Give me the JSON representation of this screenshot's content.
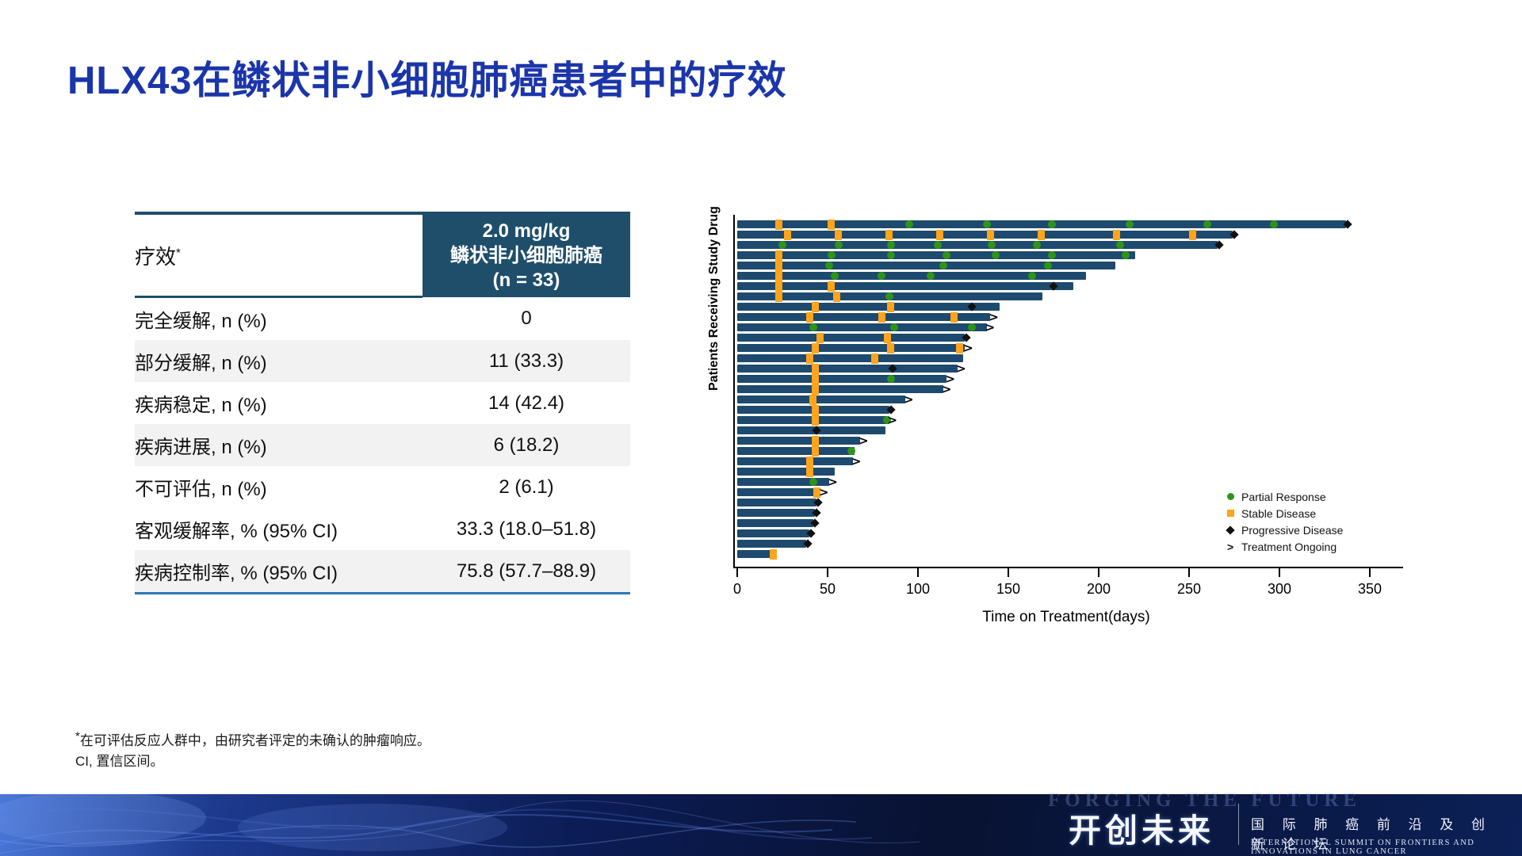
{
  "title": "HLX43在鳞状非小细胞肺癌患者中的疗效",
  "table": {
    "header_left": "疗效",
    "header_left_sup": "*",
    "header_right_lines": [
      "2.0 mg/kg",
      "鳞状非小细胞肺癌",
      "(n = 33)"
    ],
    "rows": [
      {
        "label": "完全缓解, n (%)",
        "value": "0",
        "indent": true,
        "shade": false
      },
      {
        "label": "部分缓解, n (%)",
        "value": "11 (33.3)",
        "indent": true,
        "shade": true
      },
      {
        "label": "疾病稳定, n (%)",
        "value": "14 (42.4)",
        "indent": true,
        "shade": false
      },
      {
        "label": "疾病进展, n (%)",
        "value": "6 (18.2)",
        "indent": true,
        "shade": true
      },
      {
        "label": "不可评估, n (%)",
        "value": "2 (6.1)",
        "indent": true,
        "shade": false
      },
      {
        "label": "客观缓解率, % (95% CI)",
        "value": "33.3 (18.0–51.8)",
        "indent": false,
        "shade": false
      },
      {
        "label": "疾病控制率, % (95% CI)",
        "value": "75.8 (57.7–88.9)",
        "indent": false,
        "shade": true
      }
    ]
  },
  "chart_data": {
    "type": "bar",
    "orientation": "horizontal-swimmer",
    "title": "",
    "xlabel": "Time on Treatment(days)",
    "ylabel": "Patients Receiving Study Drug",
    "xlim": [
      0,
      350
    ],
    "xticks": [
      0,
      50,
      100,
      150,
      200,
      250,
      300,
      350
    ],
    "grid": false,
    "legend_position": "right-bottom",
    "colors": {
      "bar": "#1d4a6e",
      "pr": "#2e9418",
      "sd": "#ffa41c",
      "pd": "#111111",
      "arrow": "#111111"
    },
    "legend": [
      {
        "label": "Partial Response",
        "marker": "circle"
      },
      {
        "label": "Stable Disease",
        "marker": "square"
      },
      {
        "label": "Progressive Disease",
        "marker": "diamond"
      },
      {
        "label": "Treatment Ongoing",
        "marker": "arrow"
      }
    ],
    "bars": [
      {
        "len": 337,
        "end": "pd",
        "markers": [
          [
            23,
            "SD"
          ],
          [
            52,
            "SD"
          ],
          [
            95,
            "PR"
          ],
          [
            138,
            "PR"
          ],
          [
            174,
            "PR"
          ],
          [
            217,
            "PR"
          ],
          [
            260,
            "PR"
          ],
          [
            297,
            "PR"
          ]
        ]
      },
      {
        "len": 274,
        "end": "pd",
        "markers": [
          [
            28,
            "SD"
          ],
          [
            56,
            "SD"
          ],
          [
            84,
            "SD"
          ],
          [
            112,
            "SD"
          ],
          [
            140,
            "SD"
          ],
          [
            168,
            "SD"
          ],
          [
            210,
            "SD"
          ],
          [
            252,
            "SD"
          ]
        ]
      },
      {
        "len": 266,
        "end": "pd",
        "markers": [
          [
            25,
            "PR"
          ],
          [
            56,
            "PR"
          ],
          [
            85,
            "PR"
          ],
          [
            111,
            "PR"
          ],
          [
            141,
            "PR"
          ],
          [
            166,
            "PR"
          ],
          [
            212,
            "PR"
          ]
        ]
      },
      {
        "len": 220,
        "end": "none",
        "markers": [
          [
            23,
            "SD"
          ],
          [
            52,
            "PR"
          ],
          [
            85,
            "PR"
          ],
          [
            116,
            "PR"
          ],
          [
            143,
            "PR"
          ],
          [
            174,
            "PR"
          ],
          [
            215,
            "PR"
          ]
        ]
      },
      {
        "len": 209,
        "end": "none",
        "markers": [
          [
            23,
            "SD"
          ],
          [
            51,
            "PR"
          ],
          [
            114,
            "PR"
          ],
          [
            172,
            "PR"
          ]
        ]
      },
      {
        "len": 193,
        "end": "none",
        "markers": [
          [
            23,
            "SD"
          ],
          [
            54,
            "PR"
          ],
          [
            80,
            "PR"
          ],
          [
            107,
            "PR"
          ],
          [
            163,
            "PR"
          ]
        ]
      },
      {
        "len": 186,
        "end": "none",
        "markers": [
          [
            23,
            "SD"
          ],
          [
            52,
            "SD"
          ],
          [
            175,
            "PD"
          ]
        ]
      },
      {
        "len": 169,
        "end": "none",
        "markers": [
          [
            23,
            "SD"
          ],
          [
            55,
            "SD"
          ],
          [
            84,
            "PR"
          ]
        ]
      },
      {
        "len": 145,
        "end": "none",
        "markers": [
          [
            43,
            "SD"
          ],
          [
            85,
            "SD"
          ],
          [
            130,
            "PD"
          ]
        ]
      },
      {
        "len": 140,
        "end": "arrow",
        "markers": [
          [
            40,
            "SD"
          ],
          [
            80,
            "SD"
          ],
          [
            120,
            "SD"
          ]
        ]
      },
      {
        "len": 138,
        "end": "arrow",
        "markers": [
          [
            42,
            "PR"
          ],
          [
            87,
            "PR"
          ],
          [
            130,
            "PR"
          ]
        ]
      },
      {
        "len": 126,
        "end": "pd",
        "markers": [
          [
            46,
            "SD"
          ],
          [
            83,
            "SD"
          ]
        ]
      },
      {
        "len": 126,
        "end": "arrow",
        "markers": [
          [
            43,
            "SD"
          ],
          [
            85,
            "SD"
          ],
          [
            123,
            "SD"
          ]
        ]
      },
      {
        "len": 125,
        "end": "none",
        "markers": [
          [
            40,
            "SD"
          ],
          [
            76,
            "SD"
          ]
        ]
      },
      {
        "len": 122,
        "end": "arrow",
        "markers": [
          [
            43,
            "SD"
          ],
          [
            86,
            "PD"
          ]
        ]
      },
      {
        "len": 116,
        "end": "arrow",
        "markers": [
          [
            43,
            "SD"
          ],
          [
            85,
            "PR"
          ]
        ]
      },
      {
        "len": 114,
        "end": "arrow",
        "markers": [
          [
            43,
            "SD"
          ]
        ]
      },
      {
        "len": 93,
        "end": "arrow",
        "markers": [
          [
            42,
            "SD"
          ]
        ]
      },
      {
        "len": 84,
        "end": "pd",
        "markers": [
          [
            43,
            "SD"
          ]
        ]
      },
      {
        "len": 84,
        "end": "arrow",
        "markers": [
          [
            43,
            "SD"
          ],
          [
            83,
            "PR"
          ]
        ]
      },
      {
        "len": 82,
        "end": "none",
        "markers": [
          [
            44,
            "PD"
          ]
        ]
      },
      {
        "len": 68,
        "end": "arrow",
        "markers": [
          [
            43,
            "SD"
          ]
        ]
      },
      {
        "len": 65,
        "end": "none",
        "markers": [
          [
            43,
            "SD"
          ],
          [
            63,
            "PR"
          ]
        ]
      },
      {
        "len": 64,
        "end": "arrow",
        "markers": [
          [
            40,
            "SD"
          ]
        ]
      },
      {
        "len": 54,
        "end": "none",
        "markers": [
          [
            40,
            "SD"
          ]
        ]
      },
      {
        "len": 51,
        "end": "arrow",
        "markers": [
          [
            42,
            "PR"
          ]
        ]
      },
      {
        "len": 46,
        "end": "arrow",
        "markers": [
          [
            44,
            "SD"
          ]
        ]
      },
      {
        "len": 44,
        "end": "pd",
        "markers": []
      },
      {
        "len": 43,
        "end": "pd",
        "markers": []
      },
      {
        "len": 42,
        "end": "pd",
        "markers": []
      },
      {
        "len": 40,
        "end": "pd",
        "markers": []
      },
      {
        "len": 38,
        "end": "pd",
        "markers": []
      },
      {
        "len": 22,
        "end": "none",
        "markers": [
          [
            20,
            "SD"
          ]
        ]
      }
    ]
  },
  "footnotes": {
    "line1_sup": "*",
    "line1": "在可评估反应人群中，由研究者评定的未确认的肿瘤响应。",
    "line2": "CI, 置信区间。"
  },
  "footer": {
    "ghost_text": "FORGING THE FUTURE",
    "brand_cn": "开创未来",
    "summit_cn": "国 际 肺 癌 前 沿 及 创 新 论 坛",
    "summit_en": "INTERNATIONAL SUMMIT ON FRONTIERS AND INNOVATIONS IN LUNG CANCER"
  }
}
